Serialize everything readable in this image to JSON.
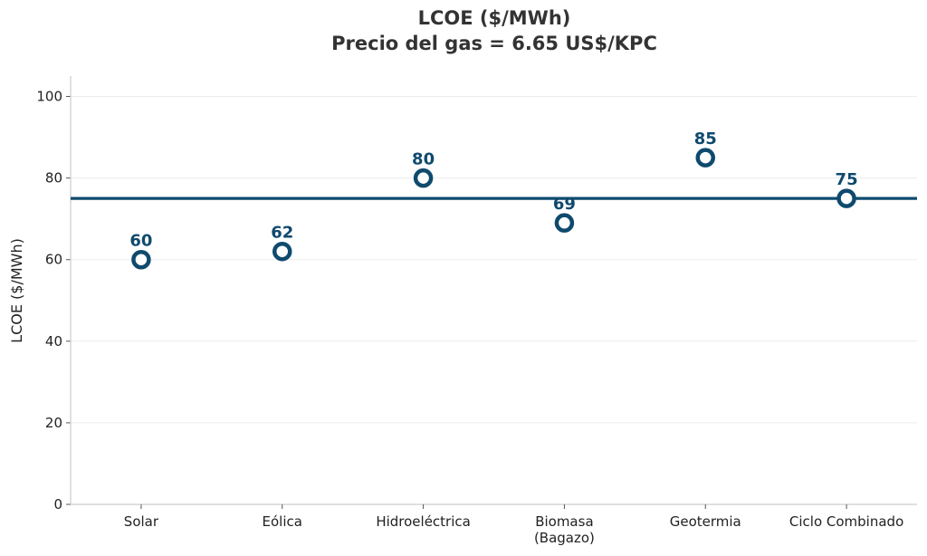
{
  "chart_data": {
    "type": "scatter",
    "title": "LCOE ($/MWh)",
    "subtitle": "Precio del gas = 6.65 US$/KPC",
    "xlabel": "",
    "ylabel": "LCOE ($/MWh)",
    "categories": [
      [
        "Solar"
      ],
      [
        "Eólica"
      ],
      [
        "Hidroeléctrica"
      ],
      [
        "Biomasa",
        "(Bagazo)"
      ],
      [
        "Geotermia"
      ],
      [
        "Ciclo Combinado"
      ]
    ],
    "values": [
      60,
      62,
      80,
      69,
      85,
      75
    ],
    "value_labels": [
      "60",
      "62",
      "80",
      "69",
      "85",
      "75"
    ],
    "reference_line": 75,
    "ylim": [
      0,
      105
    ],
    "yticks": [
      0,
      20,
      40,
      60,
      80,
      100
    ],
    "grid": "horizontal",
    "colors": {
      "marker": "#0f4a6e",
      "line": "#0f4a6e",
      "grid": "#ebebeb",
      "axis": "#cccccc"
    }
  }
}
